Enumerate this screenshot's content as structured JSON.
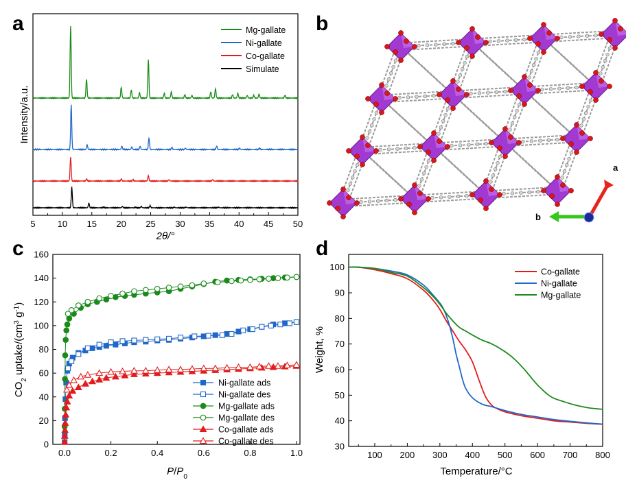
{
  "panels": {
    "a": "a",
    "b": "b",
    "c": "c",
    "d": "d"
  },
  "structure": {
    "axis_a": "a",
    "axis_b": "b",
    "colors": {
      "polyhedra": "#a23ad1",
      "oxygen": "#d9171b",
      "carbon": "#9a9a9a",
      "axis_a": "#e8231d",
      "axis_b": "#35c71c",
      "axis_c": "#1b2a9a"
    }
  },
  "chart_data": [
    {
      "id": "a",
      "type": "line",
      "xlabel": "2θ/°",
      "ylabel": "Intensity/a.u.",
      "xlim": [
        5,
        50
      ],
      "xticks": [
        5,
        10,
        15,
        20,
        25,
        30,
        35,
        40,
        45,
        50
      ],
      "yticks_shown": false,
      "legend_position": "top-right",
      "series": [
        {
          "name": "Mg-gallate",
          "color": "#1a8a1a",
          "offset": 3,
          "peaks": [
            [
              11.4,
              105
            ],
            [
              14.1,
              28
            ],
            [
              20.0,
              16
            ],
            [
              21.7,
              12
            ],
            [
              23.1,
              8
            ],
            [
              24.6,
              56
            ],
            [
              27.3,
              7
            ],
            [
              28.5,
              9
            ],
            [
              30.8,
              5
            ],
            [
              32.0,
              4
            ],
            [
              35.2,
              9
            ],
            [
              36.0,
              14
            ],
            [
              38.9,
              5
            ],
            [
              39.8,
              7
            ],
            [
              41.4,
              4
            ],
            [
              42.5,
              4
            ],
            [
              43.4,
              6
            ],
            [
              47.8,
              4
            ]
          ]
        },
        {
          "name": "Ni-gallate",
          "color": "#1f67c8",
          "offset": 2,
          "peaks": [
            [
              11.5,
              65
            ],
            [
              14.2,
              7
            ],
            [
              20.1,
              5
            ],
            [
              21.8,
              4
            ],
            [
              23.2,
              5
            ],
            [
              24.7,
              17
            ],
            [
              28.6,
              3
            ],
            [
              30.9,
              2
            ],
            [
              36.2,
              5
            ],
            [
              40.1,
              2
            ],
            [
              43.5,
              2
            ]
          ]
        },
        {
          "name": "Co-gallate",
          "color": "#e21c1c",
          "offset": 1,
          "peaks": [
            [
              11.4,
              35
            ],
            [
              14.1,
              3
            ],
            [
              20.0,
              3
            ],
            [
              22.0,
              2
            ],
            [
              24.6,
              8
            ],
            [
              28.1,
              2
            ],
            [
              35.5,
              2
            ]
          ]
        },
        {
          "name": "Simulate",
          "color": "#000000",
          "offset": 0,
          "peaks": [
            [
              11.6,
              30
            ],
            [
              14.5,
              7
            ],
            [
              17.0,
              1
            ],
            [
              20.2,
              2
            ],
            [
              22.4,
              1
            ],
            [
              23.4,
              2
            ],
            [
              24.9,
              3
            ],
            [
              29.0,
              1
            ],
            [
              31.0,
              1
            ],
            [
              36.5,
              1
            ]
          ]
        }
      ]
    },
    {
      "id": "c",
      "type": "scatter",
      "xlabel_main": "P",
      "xlabel_sep": "/",
      "xlabel_sub_main": "P",
      "xlabel_sub": "0",
      "ylabel_pre": "CO",
      "ylabel_sub": "2",
      "ylabel_mid": " uptake/(cm",
      "ylabel_sup": "3",
      "ylabel_mid2": " g",
      "ylabel_sup2": "-1",
      "ylabel_post": ")",
      "xlim": [
        0,
        1.0
      ],
      "ylim": [
        0,
        160
      ],
      "xticks": [
        "0.0",
        "0.2",
        "0.4",
        "0.6",
        "0.8",
        "1.0"
      ],
      "yticks": [
        "0",
        "20",
        "40",
        "60",
        "80",
        "100",
        "120",
        "140",
        "160"
      ],
      "legend_position": "bottom-right",
      "series": [
        {
          "name": "Ni-gallate ads",
          "color": "#1f67c8",
          "marker": "square",
          "filled": true,
          "x": [
            0.0005,
            0.001,
            0.002,
            0.004,
            0.007,
            0.012,
            0.02,
            0.035,
            0.06,
            0.09,
            0.12,
            0.15,
            0.18,
            0.22,
            0.26,
            0.3,
            0.35,
            0.4,
            0.45,
            0.5,
            0.55,
            0.6,
            0.65,
            0.7,
            0.75,
            0.8,
            0.85,
            0.9,
            0.95,
            1.0
          ],
          "y": [
            2,
            8,
            22,
            38,
            52,
            62,
            68,
            73,
            77,
            79,
            81,
            82,
            83,
            84,
            85,
            86,
            86.5,
            87.5,
            88,
            89,
            90,
            91,
            92,
            93,
            95,
            97,
            99,
            101,
            102,
            103
          ]
        },
        {
          "name": "Ni-gallate des",
          "color": "#1f67c8",
          "marker": "square",
          "filled": false,
          "x": [
            1.0,
            0.97,
            0.93,
            0.89,
            0.85,
            0.81,
            0.77,
            0.72,
            0.68,
            0.62,
            0.56,
            0.5,
            0.45,
            0.4,
            0.35,
            0.3,
            0.25,
            0.2,
            0.15,
            0.1,
            0.06,
            0.03,
            0.015
          ],
          "y": [
            103,
            102,
            101,
            100,
            99,
            97,
            96,
            93,
            92,
            91.5,
            91,
            90,
            89,
            88.5,
            88,
            87.5,
            87,
            86,
            84,
            81,
            76,
            70,
            64
          ]
        },
        {
          "name": "Mg-gallate ads",
          "color": "#1a8a1a",
          "marker": "circle",
          "filled": true,
          "x": [
            0.0005,
            0.001,
            0.002,
            0.003,
            0.005,
            0.008,
            0.012,
            0.02,
            0.04,
            0.07,
            0.1,
            0.14,
            0.18,
            0.22,
            0.26,
            0.3,
            0.35,
            0.4,
            0.45,
            0.5,
            0.55,
            0.6,
            0.65,
            0.7,
            0.75,
            0.8,
            0.85,
            0.9,
            0.95,
            1.0
          ],
          "y": [
            15,
            30,
            55,
            75,
            88,
            96,
            101,
            106,
            110,
            115,
            118,
            120,
            122,
            124,
            125,
            126,
            127,
            128,
            129,
            131,
            133,
            135,
            137,
            138,
            138.5,
            139,
            139.5,
            140,
            140.5,
            141
          ]
        },
        {
          "name": "Mg-gallate des",
          "color": "#1a8a1a",
          "marker": "circle",
          "filled": false,
          "x": [
            1.0,
            0.96,
            0.92,
            0.88,
            0.84,
            0.8,
            0.76,
            0.72,
            0.66,
            0.6,
            0.55,
            0.5,
            0.45,
            0.4,
            0.35,
            0.3,
            0.25,
            0.2,
            0.15,
            0.1,
            0.06,
            0.03,
            0.015
          ],
          "y": [
            141,
            140.5,
            140,
            139.5,
            139,
            138.5,
            138,
            137.5,
            136.5,
            135.5,
            134,
            133,
            132,
            131,
            130,
            129,
            127,
            125,
            123,
            120,
            117,
            113,
            110
          ]
        },
        {
          "name": "Co-gallate ads",
          "color": "#e21c1c",
          "marker": "triangle",
          "filled": true,
          "x": [
            0.0005,
            0.001,
            0.002,
            0.003,
            0.005,
            0.008,
            0.012,
            0.02,
            0.035,
            0.06,
            0.09,
            0.12,
            0.15,
            0.18,
            0.22,
            0.26,
            0.3,
            0.35,
            0.4,
            0.45,
            0.5,
            0.55,
            0.6,
            0.65,
            0.7,
            0.75,
            0.8,
            0.85,
            0.9,
            0.95,
            1.0
          ],
          "y": [
            2,
            7,
            12,
            18,
            25,
            31,
            36,
            41,
            45,
            48,
            51,
            53,
            54.5,
            56,
            57,
            58,
            59,
            59.5,
            60,
            60.5,
            61,
            61.5,
            62,
            62.5,
            63,
            63.5,
            64,
            64.5,
            65,
            65.5,
            66
          ]
        },
        {
          "name": "Co-gallate des",
          "color": "#e21c1c",
          "marker": "triangle",
          "filled": false,
          "x": [
            1.0,
            0.96,
            0.92,
            0.88,
            0.84,
            0.8,
            0.75,
            0.7,
            0.65,
            0.6,
            0.55,
            0.5,
            0.45,
            0.4,
            0.35,
            0.3,
            0.25,
            0.2,
            0.15,
            0.1,
            0.07,
            0.04,
            0.02,
            0.01
          ],
          "y": [
            67,
            66.5,
            66,
            66,
            65.5,
            65,
            65,
            64.5,
            64,
            64,
            63.5,
            63,
            63,
            62.5,
            62,
            62,
            61.5,
            61,
            60,
            58.5,
            57,
            54,
            50,
            46
          ]
        }
      ]
    },
    {
      "id": "d",
      "type": "line",
      "xlabel": "Temperature/°C",
      "ylabel": "Weight, %",
      "xlim": [
        20,
        800
      ],
      "ylim": [
        30,
        105
      ],
      "xticks": [
        100,
        200,
        300,
        400,
        500,
        600,
        700,
        800
      ],
      "yticks": [
        30,
        40,
        50,
        60,
        70,
        80,
        90,
        100
      ],
      "legend_position": "top-right",
      "series": [
        {
          "name": "Co-gallate",
          "color": "#e21c1c",
          "x": [
            20,
            50,
            100,
            150,
            200,
            250,
            280,
            300,
            320,
            340,
            360,
            380,
            400,
            420,
            440,
            460,
            480,
            500,
            550,
            600,
            650,
            700,
            750,
            800
          ],
          "y": [
            100,
            100,
            99,
            97.5,
            95.5,
            91,
            87,
            83.5,
            79,
            75,
            71,
            67.5,
            63,
            56,
            49.5,
            46,
            44.5,
            43.5,
            42,
            41,
            40,
            39.5,
            39,
            38.6
          ]
        },
        {
          "name": "Ni-gallate",
          "color": "#1f67c8",
          "x": [
            20,
            50,
            100,
            150,
            200,
            250,
            280,
            300,
            310,
            320,
            330,
            340,
            350,
            360,
            370,
            380,
            400,
            430,
            460,
            500,
            550,
            600,
            650,
            700,
            750,
            800
          ],
          "y": [
            100,
            100,
            99.5,
            98.5,
            97,
            93,
            89,
            86,
            84,
            81,
            77,
            72,
            66,
            61,
            56,
            52.5,
            49,
            46.5,
            45.5,
            44,
            42.5,
            41.5,
            40.5,
            39.8,
            39.2,
            38.7
          ]
        },
        {
          "name": "Mg-gallate",
          "color": "#1a8a1a",
          "x": [
            20,
            50,
            100,
            150,
            200,
            250,
            280,
            300,
            320,
            340,
            360,
            380,
            400,
            430,
            460,
            500,
            530,
            560,
            600,
            640,
            680,
            720,
            760,
            800
          ],
          "y": [
            100,
            100,
            99.5,
            98,
            96.5,
            92,
            88.5,
            85.5,
            82,
            79,
            76.5,
            75,
            73.5,
            71.5,
            70,
            67,
            64,
            60,
            54,
            49.5,
            47.5,
            46,
            45,
            44.5
          ]
        }
      ]
    }
  ]
}
